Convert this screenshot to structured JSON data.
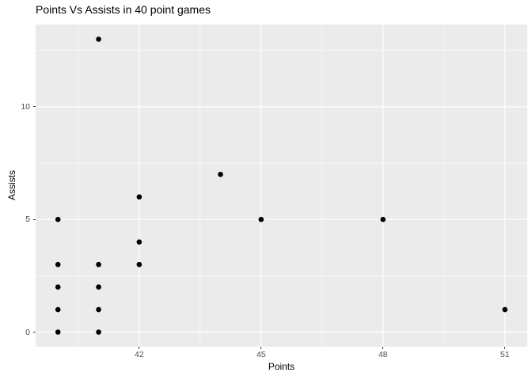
{
  "chart_data": {
    "type": "scatter",
    "title": "Points Vs Assists in 40 point games",
    "xlabel": "Points",
    "ylabel": "Assists",
    "points": [
      {
        "x": 40,
        "y": 0
      },
      {
        "x": 40,
        "y": 1
      },
      {
        "x": 40,
        "y": 2
      },
      {
        "x": 40,
        "y": 3
      },
      {
        "x": 40,
        "y": 5
      },
      {
        "x": 41,
        "y": 0
      },
      {
        "x": 41,
        "y": 1
      },
      {
        "x": 41,
        "y": 2
      },
      {
        "x": 41,
        "y": 3
      },
      {
        "x": 41,
        "y": 13
      },
      {
        "x": 42,
        "y": 3
      },
      {
        "x": 42,
        "y": 4
      },
      {
        "x": 42,
        "y": 6
      },
      {
        "x": 44,
        "y": 7
      },
      {
        "x": 45,
        "y": 5
      },
      {
        "x": 48,
        "y": 5
      },
      {
        "x": 51,
        "y": 1
      }
    ],
    "x_ticks": [
      "42",
      "45",
      "48",
      "51"
    ],
    "x_tick_values": [
      42,
      45,
      48,
      51
    ],
    "x_minor_values": [
      40.5,
      43.5,
      46.5,
      49.5
    ],
    "y_ticks": [
      "0",
      "5",
      "10"
    ],
    "y_tick_values": [
      0,
      5,
      10
    ],
    "y_minor_values": [
      2.5,
      7.5,
      12.5
    ],
    "xlim": [
      39.45,
      51.55
    ],
    "ylim": [
      -0.65,
      13.65
    ],
    "grid": true,
    "legend": false
  },
  "style": {
    "figure_bg": "#FFFFFF",
    "panel_bg": "#EBEBEB",
    "grid_major_color": "#FFFFFF",
    "grid_minor_color": "#FFFFFF",
    "point_color": "#000000",
    "tick_label_color": "#4D4D4D",
    "tick_mark_color": "#333333",
    "title_color": "#000000"
  }
}
